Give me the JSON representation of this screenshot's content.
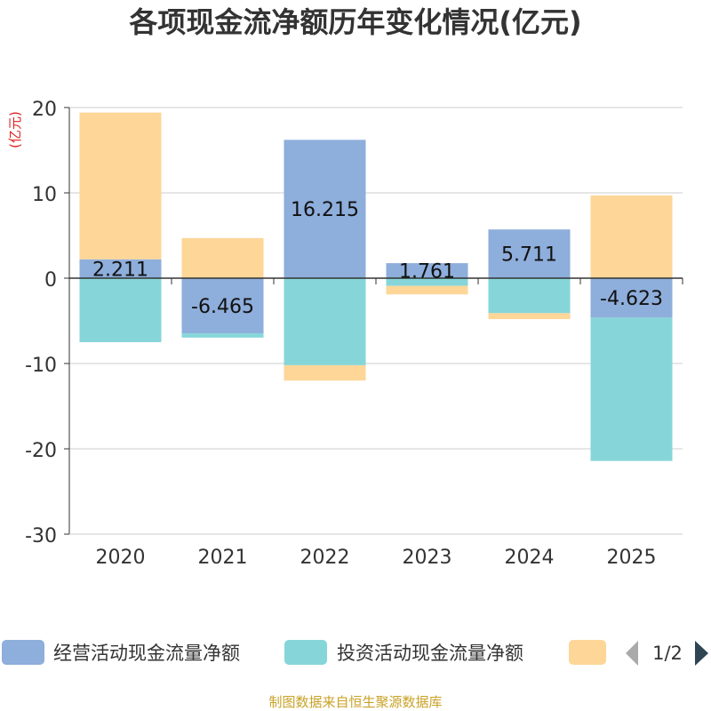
{
  "chart_data": {
    "type": "bar",
    "stacked": true,
    "title": "各项现金流净额历年变化情况(亿元)",
    "ylabel": "(亿元)",
    "xlabel": "",
    "ylim": [
      -30,
      20
    ],
    "yticks": [
      20,
      10,
      0,
      -10,
      -20,
      -30
    ],
    "grid": true,
    "categories": [
      "2020",
      "2021",
      "2022",
      "2023",
      "2024",
      "2025"
    ],
    "series": [
      {
        "name": "经营活动现金流量净额",
        "color": "#8eaedb",
        "values": [
          2.211,
          -6.465,
          16.215,
          1.761,
          5.711,
          -4.623
        ]
      },
      {
        "name": "投资活动现金流量净额",
        "color": "#86d6d9",
        "values": [
          -7.5,
          -0.5,
          -10.2,
          -0.9,
          -4.1,
          -16.8
        ]
      },
      {
        "name": "",
        "color": "#fdd698",
        "values": [
          17.2,
          4.7,
          -1.8,
          -1.0,
          -0.7,
          9.7
        ]
      }
    ],
    "data_labels": [
      "2.211",
      "-6.465",
      "16.215",
      "1.761",
      "5.711",
      "-4.623"
    ],
    "legend": {
      "position": "bottom",
      "page": "1/2"
    },
    "source": "制图数据来自恒生聚源数据库"
  }
}
